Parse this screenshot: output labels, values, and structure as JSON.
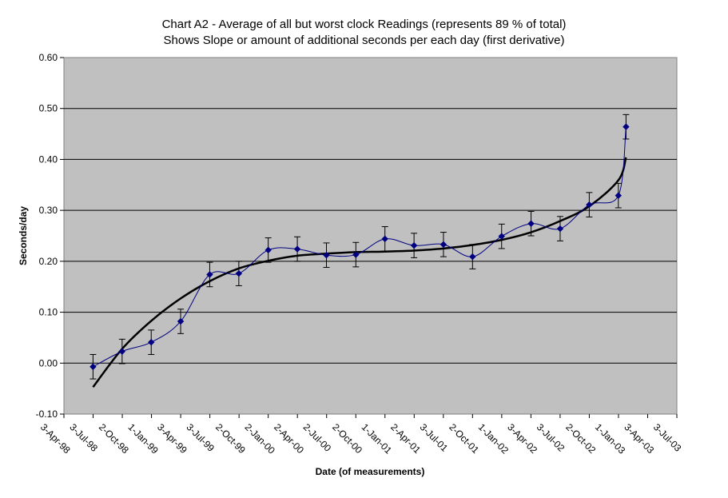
{
  "chart_data": {
    "type": "line",
    "title": "Chart A2 - Average of all but worst clock Readings (represents 89 % of total)",
    "subtitle": "Shows Slope or amount of additional seconds per each day  (first derivative)",
    "xlabel": "Date (of measurements)",
    "ylabel": "Seconds/day",
    "ylim": [
      -0.1,
      0.6
    ],
    "yticks": [
      "-0.10",
      "0.00",
      "0.10",
      "0.20",
      "0.30",
      "0.40",
      "0.50",
      "0.60"
    ],
    "ytick_values": [
      -0.1,
      0.0,
      0.1,
      0.2,
      0.3,
      0.4,
      0.5,
      0.6
    ],
    "xticks": [
      "3-Apr-98",
      "3-Jul-98",
      "2-Oct-98",
      "1-Jan-99",
      "3-Apr-99",
      "3-Jul-99",
      "2-Oct-99",
      "2-Jan-00",
      "2-Apr-00",
      "2-Jul-00",
      "2-Oct-00",
      "1-Jan-01",
      "2-Apr-01",
      "3-Jul-01",
      "2-Oct-01",
      "1-Jan-02",
      "3-Apr-02",
      "3-Jul-02",
      "2-Oct-02",
      "1-Jan-03",
      "3-Apr-03",
      "3-Jul-03"
    ],
    "grid": true,
    "plot_background": "#c0c0c0",
    "series": [
      {
        "color": "#000080",
        "x": [
          "1998-07-03",
          "1998-10-02",
          "1999-01-01",
          "1999-04-03",
          "1999-07-03",
          "1999-10-02",
          "2000-01-02",
          "2000-04-02",
          "2000-07-02",
          "2000-10-02",
          "2001-01-01",
          "2001-04-02",
          "2001-07-03",
          "2001-10-02",
          "2002-01-01",
          "2002-04-03",
          "2002-07-03",
          "2002-10-02",
          "2003-01-01",
          "2003-01-25"
        ],
        "y": [
          -0.007,
          0.023,
          0.041,
          0.082,
          0.174,
          0.176,
          0.222,
          0.224,
          0.212,
          0.213,
          0.244,
          0.231,
          0.233,
          0.209,
          0.249,
          0.274,
          0.264,
          0.311,
          0.329,
          0.464
        ],
        "error": [
          0.024,
          0.024,
          0.024,
          0.024,
          0.024,
          0.024,
          0.024,
          0.024,
          0.024,
          0.024,
          0.024,
          0.024,
          0.024,
          0.024,
          0.024,
          0.024,
          0.024,
          0.024,
          0.024,
          0.024
        ]
      },
      {
        "type": "trendline",
        "color": "#000000",
        "x": [
          "1998-07-03",
          "1998-10-02",
          "1999-01-01",
          "1999-04-03",
          "1999-07-03",
          "1999-10-02",
          "2000-01-02",
          "2000-04-02",
          "2000-07-02",
          "2000-10-02",
          "2001-01-01",
          "2001-04-02",
          "2001-07-03",
          "2001-10-02",
          "2002-01-01",
          "2002-04-03",
          "2002-07-03",
          "2002-10-02",
          "2003-01-01",
          "2003-01-25"
        ],
        "y": [
          -0.047,
          0.028,
          0.083,
          0.127,
          0.161,
          0.186,
          0.201,
          0.211,
          0.215,
          0.218,
          0.219,
          0.221,
          0.225,
          0.232,
          0.242,
          0.257,
          0.279,
          0.308,
          0.359,
          0.404
        ]
      }
    ]
  }
}
